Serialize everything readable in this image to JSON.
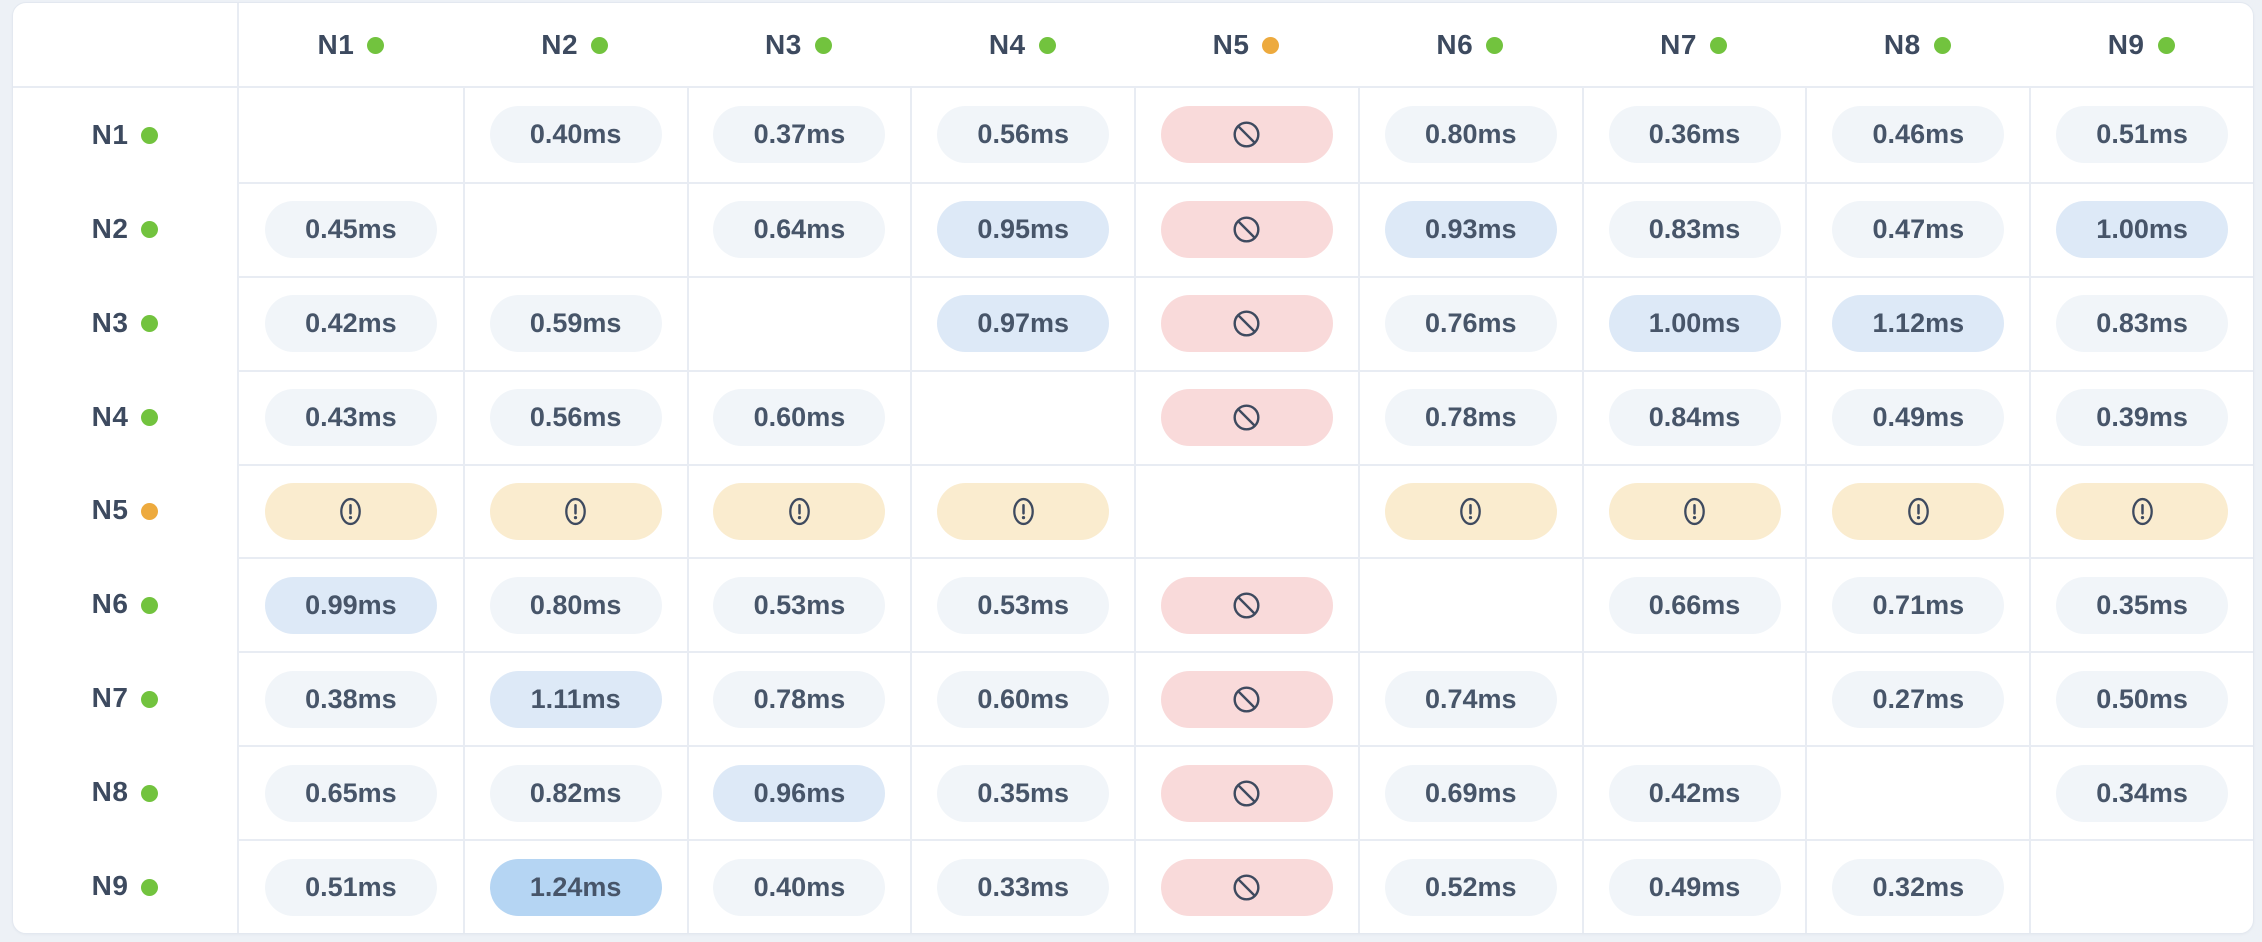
{
  "panel": {
    "kind": "node-latency-matrix",
    "unit": "ms"
  },
  "colors": {
    "status_online": "#72c33e",
    "status_warning": "#edaa3e",
    "pill_default_bg": "#f1f5f9",
    "pill_high_bg": "#dde9f7",
    "pill_max_bg": "#b5d5f3",
    "pill_blocked_bg": "#f9dada",
    "pill_warning_bg": "#faeccf",
    "icon_stroke": "#3e4a5f",
    "label_text": "#3d4a5f",
    "value_text": "#475569",
    "grid_line": "#e8ecf3",
    "page_bg": "#edf1f6"
  },
  "nodes": [
    {
      "label": "N1",
      "status": "online"
    },
    {
      "label": "N2",
      "status": "online"
    },
    {
      "label": "N3",
      "status": "online"
    },
    {
      "label": "N4",
      "status": "online"
    },
    {
      "label": "N5",
      "status": "warning"
    },
    {
      "label": "N6",
      "status": "online"
    },
    {
      "label": "N7",
      "status": "online"
    },
    {
      "label": "N8",
      "status": "online"
    },
    {
      "label": "N9",
      "status": "online"
    }
  ],
  "matrix": [
    [
      {
        "self": true
      },
      {
        "v": "0.40ms"
      },
      {
        "v": "0.37ms"
      },
      {
        "v": "0.56ms"
      },
      {
        "blocked": true
      },
      {
        "v": "0.80ms"
      },
      {
        "v": "0.36ms"
      },
      {
        "v": "0.46ms"
      },
      {
        "v": "0.51ms"
      }
    ],
    [
      {
        "v": "0.45ms"
      },
      {
        "self": true
      },
      {
        "v": "0.64ms"
      },
      {
        "v": "0.95ms",
        "level": "high"
      },
      {
        "blocked": true
      },
      {
        "v": "0.93ms",
        "level": "high"
      },
      {
        "v": "0.83ms"
      },
      {
        "v": "0.47ms"
      },
      {
        "v": "1.00ms",
        "level": "high"
      }
    ],
    [
      {
        "v": "0.42ms"
      },
      {
        "v": "0.59ms"
      },
      {
        "self": true
      },
      {
        "v": "0.97ms",
        "level": "high"
      },
      {
        "blocked": true
      },
      {
        "v": "0.76ms"
      },
      {
        "v": "1.00ms",
        "level": "high"
      },
      {
        "v": "1.12ms",
        "level": "high"
      },
      {
        "v": "0.83ms"
      }
    ],
    [
      {
        "v": "0.43ms"
      },
      {
        "v": "0.56ms"
      },
      {
        "v": "0.60ms"
      },
      {
        "self": true
      },
      {
        "blocked": true
      },
      {
        "v": "0.78ms"
      },
      {
        "v": "0.84ms"
      },
      {
        "v": "0.49ms"
      },
      {
        "v": "0.39ms"
      }
    ],
    [
      {
        "warning": true
      },
      {
        "warning": true
      },
      {
        "warning": true
      },
      {
        "warning": true
      },
      {
        "self": true
      },
      {
        "warning": true
      },
      {
        "warning": true
      },
      {
        "warning": true
      },
      {
        "warning": true
      }
    ],
    [
      {
        "v": "0.99ms",
        "level": "high"
      },
      {
        "v": "0.80ms"
      },
      {
        "v": "0.53ms"
      },
      {
        "v": "0.53ms"
      },
      {
        "blocked": true
      },
      {
        "self": true
      },
      {
        "v": "0.66ms"
      },
      {
        "v": "0.71ms"
      },
      {
        "v": "0.35ms"
      }
    ],
    [
      {
        "v": "0.38ms"
      },
      {
        "v": "1.11ms",
        "level": "high"
      },
      {
        "v": "0.78ms"
      },
      {
        "v": "0.60ms"
      },
      {
        "blocked": true
      },
      {
        "v": "0.74ms"
      },
      {
        "self": true
      },
      {
        "v": "0.27ms"
      },
      {
        "v": "0.50ms"
      }
    ],
    [
      {
        "v": "0.65ms"
      },
      {
        "v": "0.82ms"
      },
      {
        "v": "0.96ms",
        "level": "high"
      },
      {
        "v": "0.35ms"
      },
      {
        "blocked": true
      },
      {
        "v": "0.69ms"
      },
      {
        "v": "0.42ms"
      },
      {
        "self": true
      },
      {
        "v": "0.34ms"
      }
    ],
    [
      {
        "v": "0.51ms"
      },
      {
        "v": "1.24ms",
        "level": "max"
      },
      {
        "v": "0.40ms"
      },
      {
        "v": "0.33ms"
      },
      {
        "blocked": true
      },
      {
        "v": "0.52ms"
      },
      {
        "v": "0.49ms"
      },
      {
        "v": "0.32ms"
      },
      {
        "self": true
      }
    ]
  ]
}
